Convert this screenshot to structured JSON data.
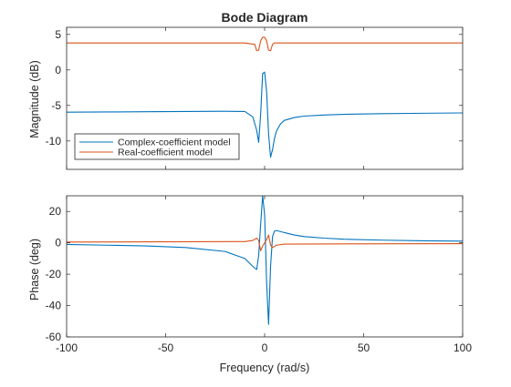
{
  "chart_data": {
    "type": "line",
    "title": "Bode Diagram",
    "xlabel": "Frequency (rad/s)",
    "xlim": [
      -100,
      100
    ],
    "xticks": [
      -100,
      -50,
      0,
      50,
      100
    ],
    "grid": false,
    "legend": {
      "placement": "bottom-left",
      "in_panel": "magnitude"
    },
    "colors": {
      "Complex-coefficient model": "#0072BD",
      "Real-coefficient model": "#D95319"
    },
    "panels": [
      {
        "id": "magnitude",
        "ylabel": "Magnitude (dB)",
        "ylim": [
          -14,
          6
        ],
        "yticks": [
          5,
          0,
          -5,
          -10
        ],
        "series": [
          {
            "name": "Complex-coefficient model",
            "x": [
              -100,
              -80,
              -60,
              -40,
              -20,
              -10,
              -6,
              -4,
              -3,
              -2,
              -1,
              0,
              1,
              2,
              3,
              4,
              5,
              6,
              8,
              10,
              15,
              20,
              30,
              40,
              60,
              80,
              100
            ],
            "y": [
              -5.95,
              -5.92,
              -5.88,
              -5.85,
              -5.82,
              -5.85,
              -6.6,
              -8.5,
              -10.2,
              -6.2,
              -0.5,
              -0.3,
              -3.0,
              -9.0,
              -12.3,
              -11.2,
              -9.6,
              -8.6,
              -7.6,
              -7.1,
              -6.7,
              -6.5,
              -6.35,
              -6.25,
              -6.15,
              -6.1,
              -6.05
            ]
          },
          {
            "name": "Real-coefficient model",
            "x": [
              -100,
              -10,
              -5,
              -4,
              -3,
              -2,
              -1,
              0,
              1,
              2,
              3,
              4,
              5,
              10,
              100
            ],
            "y": [
              3.8,
              3.8,
              3.6,
              2.7,
              2.8,
              4.1,
              4.6,
              4.6,
              4.1,
              2.8,
              2.7,
              3.6,
              3.8,
              3.8,
              3.8
            ]
          }
        ]
      },
      {
        "id": "phase",
        "ylabel": "Phase (deg)",
        "ylim": [
          -60,
          30
        ],
        "yticks": [
          20,
          0,
          -20,
          -40,
          -60
        ],
        "series": [
          {
            "name": "Complex-coefficient model",
            "x": [
              -100,
              -80,
              -60,
              -40,
              -20,
              -10,
              -6,
              -4,
              -3,
              -2,
              -1,
              0,
              1,
              2,
              3,
              4,
              5,
              6,
              8,
              10,
              15,
              20,
              30,
              40,
              60,
              80,
              100
            ],
            "y": [
              -1.0,
              -1.5,
              -2.0,
              -3.0,
              -5.5,
              -10.0,
              -15.0,
              -17.0,
              -8.0,
              12.0,
              30.0,
              18.0,
              -25.0,
              -52.0,
              -15.0,
              4.0,
              7.5,
              7.8,
              7.2,
              6.5,
              5.0,
              4.0,
              3.0,
              2.3,
              1.7,
              1.3,
              1.1
            ]
          },
          {
            "name": "Real-coefficient model",
            "x": [
              -100,
              -10,
              -6,
              -4,
              -3,
              -2,
              -1,
              0,
              1,
              2,
              3,
              4,
              6,
              10,
              100
            ],
            "y": [
              0.5,
              0.8,
              1.5,
              3.0,
              1.5,
              -5.0,
              -2.0,
              0.0,
              2.0,
              5.0,
              -1.5,
              -3.0,
              -1.5,
              -0.8,
              -0.5
            ]
          }
        ]
      }
    ]
  }
}
